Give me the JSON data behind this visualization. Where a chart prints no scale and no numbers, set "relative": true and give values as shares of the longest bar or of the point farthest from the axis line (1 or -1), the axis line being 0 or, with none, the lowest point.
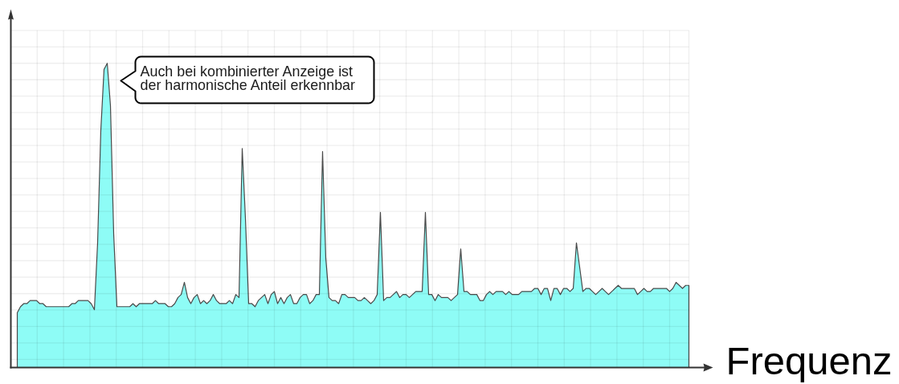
{
  "chart_data": {
    "type": "area",
    "relative": true,
    "xlabel": "Frequenz",
    "color": "#8efcf6",
    "grid": true,
    "annotations": [
      "Auch bei kombinierter Anzeige ist der harmonische Anteil erkennbar"
    ],
    "categories": [
      null,
      null,
      null,
      null,
      null,
      null,
      null,
      null,
      null,
      null,
      null,
      null,
      null,
      null,
      null,
      null,
      null,
      null,
      null,
      null,
      null,
      null,
      null,
      null,
      null,
      null,
      null,
      null,
      null,
      null,
      null,
      null,
      null,
      null,
      null,
      null,
      null,
      null,
      null,
      null,
      null,
      null,
      null,
      null,
      null,
      null,
      null,
      null,
      null,
      null,
      null,
      null,
      null,
      null,
      null,
      null,
      null,
      null,
      null,
      null,
      null,
      null,
      null,
      null,
      null,
      null,
      null,
      null,
      null,
      null,
      null,
      null,
      null,
      null,
      null,
      null,
      null,
      null,
      null,
      null,
      null,
      null,
      null,
      null,
      null,
      null,
      null,
      null,
      null,
      null,
      null,
      null,
      null,
      null,
      null,
      null,
      null,
      null,
      null,
      null,
      null,
      null,
      null,
      null,
      null,
      null,
      null,
      null,
      null,
      null,
      null,
      null,
      null,
      null,
      null,
      null,
      null,
      null,
      null,
      null,
      null,
      null,
      null,
      null,
      null,
      null,
      null,
      null,
      null,
      null,
      null,
      null,
      null,
      null,
      null,
      null,
      null,
      null,
      null,
      null,
      null,
      null,
      null,
      null,
      null,
      null,
      null,
      null,
      null,
      null,
      null,
      null,
      null,
      null,
      null,
      null,
      null,
      null,
      null,
      null,
      null,
      null,
      null,
      null,
      null,
      null,
      null,
      null,
      null,
      null,
      null,
      null,
      null,
      null,
      null,
      null,
      null,
      null,
      null,
      null,
      null,
      null,
      null,
      null,
      null,
      null,
      null,
      null,
      null,
      null,
      null,
      null,
      null,
      null,
      null,
      null,
      null,
      null,
      null,
      null,
      null,
      null,
      null,
      null,
      null,
      null,
      null,
      null,
      null,
      null
    ],
    "values": [
      0.18,
      0.2,
      0.21,
      0.21,
      0.22,
      0.22,
      0.22,
      0.21,
      0.21,
      0.2,
      0.2,
      0.2,
      0.2,
      0.2,
      0.2,
      0.2,
      0.2,
      0.21,
      0.21,
      0.22,
      0.22,
      0.22,
      0.22,
      0.21,
      0.19,
      0.41,
      0.78,
      0.98,
      1,
      0.86,
      0.44,
      0.2,
      0.2,
      0.2,
      0.2,
      0.2,
      0.21,
      0.2,
      0.21,
      0.21,
      0.21,
      0.21,
      0.21,
      0.22,
      0.21,
      0.21,
      0.21,
      0.2,
      0.2,
      0.21,
      0.23,
      0.24,
      0.28,
      0.23,
      0.21,
      0.23,
      0.24,
      0.21,
      0.22,
      0.21,
      0.22,
      0.24,
      0.22,
      0.21,
      0.21,
      0.21,
      0.22,
      0.21,
      0.24,
      0.23,
      0.72,
      0.49,
      0.21,
      0.21,
      0.2,
      0.22,
      0.23,
      0.24,
      0.21,
      0.24,
      0.25,
      0.21,
      0.23,
      0.21,
      0.23,
      0.24,
      0.21,
      0.21,
      0.23,
      0.24,
      0.24,
      0.21,
      0.22,
      0.24,
      0.24,
      0.71,
      0.36,
      0.23,
      0.22,
      0.22,
      0.21,
      0.24,
      0.24,
      0.23,
      0.23,
      0.23,
      0.22,
      0.22,
      0.23,
      0.22,
      0.21,
      0.22,
      0.24,
      0.51,
      0.22,
      0.23,
      0.23,
      0.24,
      0.25,
      0.23,
      0.24,
      0.24,
      0.23,
      0.24,
      0.25,
      0.25,
      0.25,
      0.51,
      0.24,
      0.24,
      0.22,
      0.24,
      0.23,
      0.23,
      0.23,
      0.22,
      0.23,
      0.24,
      0.39,
      0.25,
      0.25,
      0.24,
      0.24,
      0.24,
      0.22,
      0.22,
      0.24,
      0.25,
      0.24,
      0.25,
      0.25,
      0.25,
      0.24,
      0.25,
      0.24,
      0.24,
      0.24,
      0.25,
      0.25,
      0.25,
      0.25,
      0.26,
      0.26,
      0.24,
      0.26,
      0.26,
      0.22,
      0.26,
      0.26,
      0.24,
      0.26,
      0.26,
      0.25,
      0.26,
      0.41,
      0.33,
      0.25,
      0.26,
      0.26,
      0.25,
      0.24,
      0.25,
      0.26,
      0.25,
      0.24,
      0.25,
      0.26,
      0.27,
      0.26,
      0.26,
      0.26,
      0.26,
      0.26,
      0.24,
      0.25,
      0.26,
      0.25,
      0.25,
      0.26,
      0.26,
      0.26,
      0.26,
      0.26,
      0.25,
      0.26,
      0.28,
      0.27,
      0.26,
      0.27,
      0.27
    ]
  }
}
